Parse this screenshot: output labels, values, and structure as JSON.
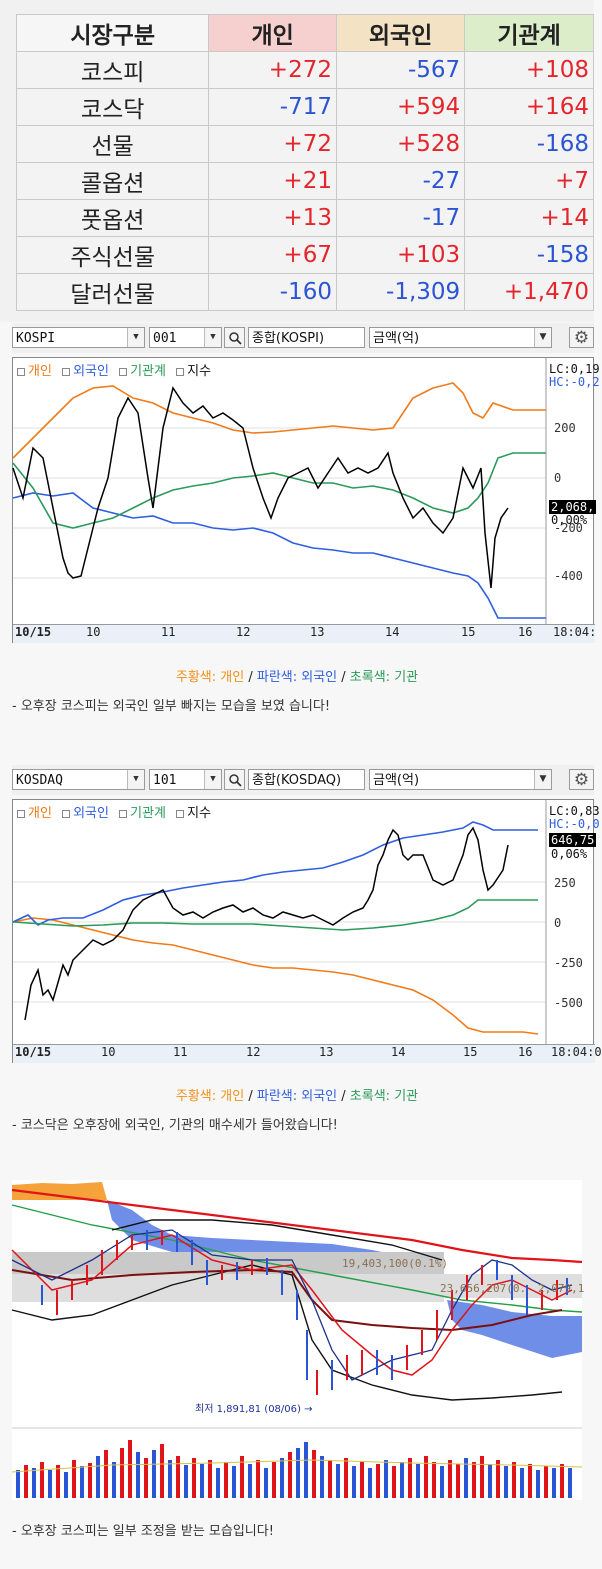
{
  "table": {
    "headers": [
      "시장구분",
      "개인",
      "외국인",
      "기관계"
    ],
    "rows": [
      {
        "market": "코스피",
        "individual": "+272",
        "foreign": "-567",
        "institution": "+108"
      },
      {
        "market": "코스닥",
        "individual": "-717",
        "foreign": "+594",
        "institution": "+164"
      },
      {
        "market": "선물",
        "individual": "+72",
        "foreign": "+528",
        "institution": "-168"
      },
      {
        "market": "콜옵션",
        "individual": "+21",
        "foreign": "-27",
        "institution": "+7"
      },
      {
        "market": "풋옵션",
        "individual": "+13",
        "foreign": "-17",
        "institution": "+14"
      },
      {
        "market": "주식선물",
        "individual": "+67",
        "foreign": "+103",
        "institution": "-158"
      },
      {
        "market": "달러선물",
        "individual": "-160",
        "foreign": "-1,309",
        "institution": "+1,470"
      }
    ]
  },
  "chart1": {
    "selector_market": "KOSPI",
    "selector_code": "001",
    "selector_name": "종합(KOSPI)",
    "selector_unit": "금액(억)",
    "legend": {
      "individual": "개인",
      "foreign": "외국인",
      "institution": "기관계",
      "index": "지수"
    },
    "lc": "LC:0,19",
    "hc": "HC:-0,2",
    "y_ticks": [
      "200",
      "0",
      "-200",
      "-400"
    ],
    "price_label": "2,068,",
    "pct_label": "0,00%",
    "x_ticks": [
      "10/15",
      "10",
      "11",
      "12",
      "13",
      "14",
      "15",
      "16",
      "18:04:"
    ]
  },
  "chart2": {
    "selector_market": "KOSDAQ",
    "selector_code": "101",
    "selector_name": "종합(KOSDAQ)",
    "selector_unit": "금액(억)",
    "legend": {
      "individual": "개인",
      "foreign": "외국인",
      "institution": "기관계",
      "index": "지수"
    },
    "lc": "LC:0,83",
    "hc": "HC:-0,0",
    "y_ticks": [
      "250",
      "0",
      "-250",
      "-500"
    ],
    "price_label": "646,75",
    "pct_label": "0,06%",
    "x_ticks": [
      "10/15",
      "10",
      "11",
      "12",
      "13",
      "14",
      "15",
      "16",
      "18:04:0"
    ]
  },
  "caption": {
    "orange": "주황색: 개인",
    "sep1": " / ",
    "blue": "파란색: 외국인",
    "sep2": " / ",
    "green": "초록색: 기관"
  },
  "desc1": "- 오후장 코스피는 외국인 일부 빠지는 모습을 보였 습니다!",
  "desc2": "- 코스닥은 오후장에 외국인, 기관의 매수세가 들어왔습니다!",
  "candle": {
    "annotation1": "19,403,100(0.1%)",
    "annotation2": "23,656,207(0.",
    "annotation3": "2,079,1",
    "low_label": "최저 1,891,81 (08/06) →"
  },
  "desc3": "- 오후장 코스피는 일부 조정을 받는 모습입니다!",
  "colors": {
    "individual": "#f07b1a",
    "foreign": "#2f5ee0",
    "institution": "#2c9a5a",
    "positive": "#e3262c",
    "negative": "#2b55d5"
  }
}
